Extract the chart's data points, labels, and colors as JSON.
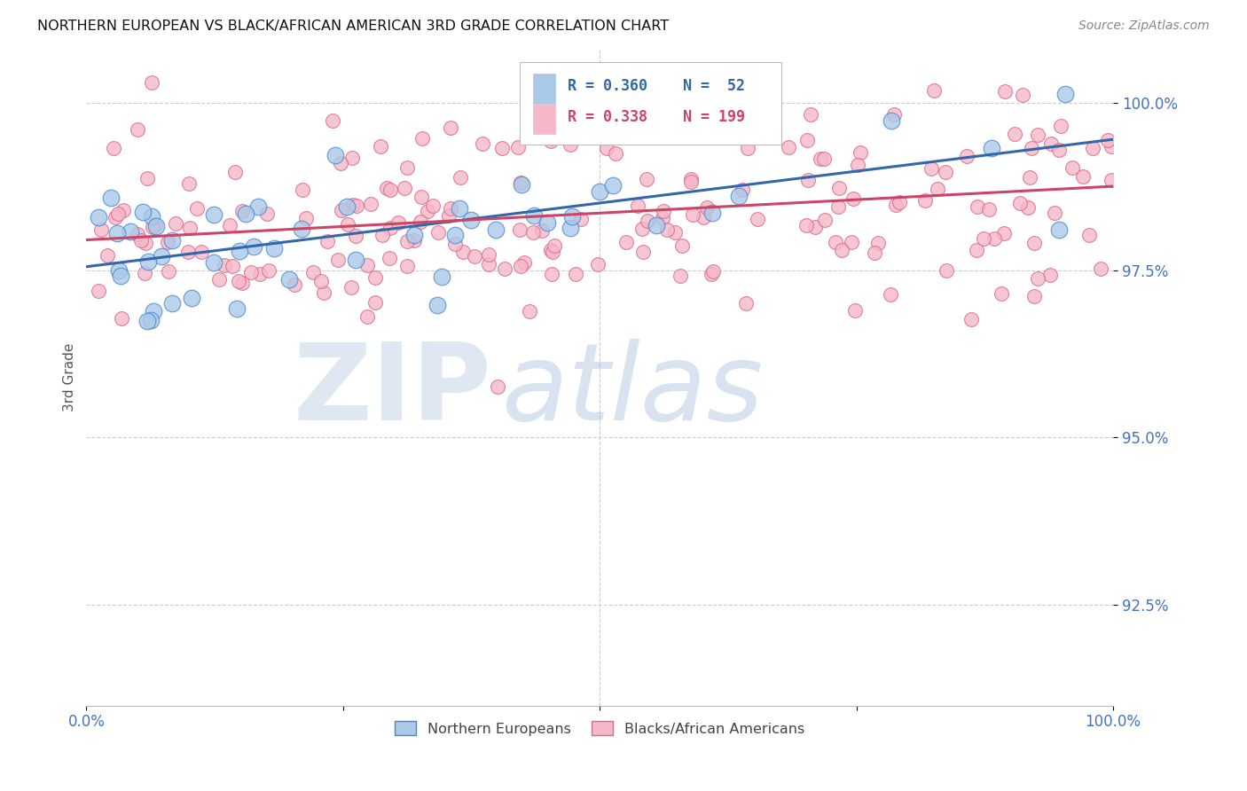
{
  "title": "NORTHERN EUROPEAN VS BLACK/AFRICAN AMERICAN 3RD GRADE CORRELATION CHART",
  "source": "Source: ZipAtlas.com",
  "ylabel": "3rd Grade",
  "y_tick_labels": [
    "100.0%",
    "97.5%",
    "95.0%",
    "92.5%"
  ],
  "y_tick_values": [
    1.0,
    0.975,
    0.95,
    0.925
  ],
  "x_range": [
    0.0,
    1.0
  ],
  "y_range": [
    0.91,
    1.008
  ],
  "legend_r_blue": "R = 0.360",
  "legend_n_blue": "N =  52",
  "legend_r_pink": "R = 0.338",
  "legend_n_pink": "N = 199",
  "blue_fill_color": "#aac8e8",
  "pink_fill_color": "#f5b8c8",
  "blue_edge_color": "#4488cc",
  "pink_edge_color": "#dd6688",
  "blue_line_color": "#3366aa",
  "pink_line_color": "#cc4466",
  "title_color": "#111111",
  "source_color": "#888888",
  "tick_label_color": "#4472c4",
  "grid_color": "#cccccc",
  "background_color": "#ffffff",
  "blue_trendline_y0": 0.9755,
  "blue_trendline_y1": 0.9945,
  "pink_trendline_y0": 0.9795,
  "pink_trendline_y1": 0.9875
}
